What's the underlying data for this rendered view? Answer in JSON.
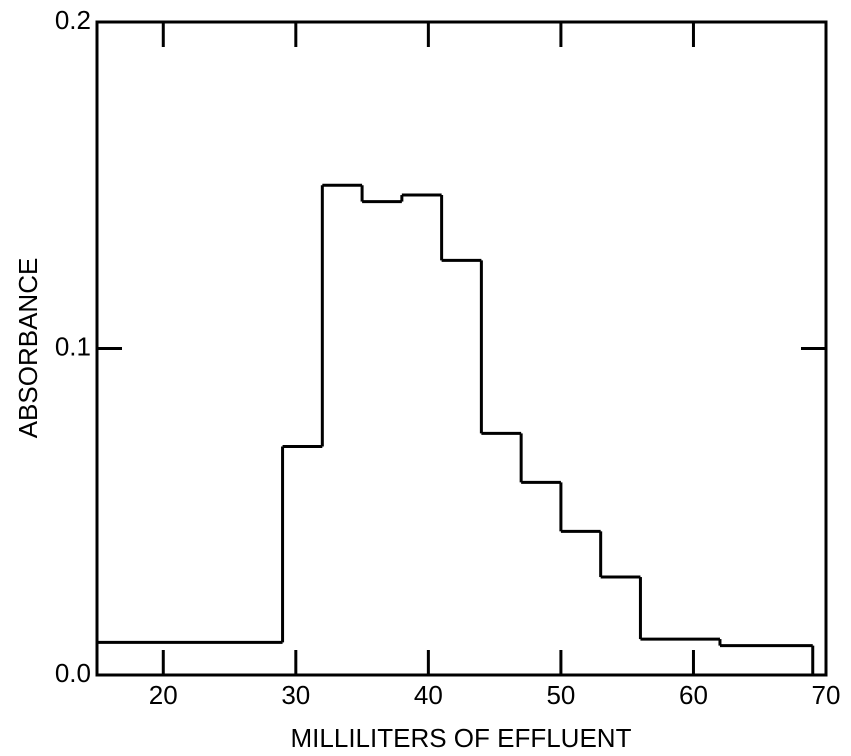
{
  "chart_data": {
    "type": "histogram",
    "xlabel": "MILLILITERS OF EFFLUENT",
    "ylabel": "ABSORBANCE",
    "bins": [
      15,
      29,
      32,
      35,
      38,
      41,
      44,
      47,
      50,
      53,
      56,
      62,
      69
    ],
    "values": [
      0.01,
      0.07,
      0.15,
      0.145,
      0.147,
      0.127,
      0.074,
      0.059,
      0.044,
      0.03,
      0.011,
      0.009
    ],
    "color": "#000000",
    "xlim": [
      15,
      70
    ],
    "xticks": [
      20,
      30,
      40,
      50,
      60,
      70
    ],
    "ylim": [
      0,
      0.2
    ],
    "yticks": [
      {
        "value": 0,
        "label": "0.0"
      },
      0.1,
      0.2
    ]
  }
}
